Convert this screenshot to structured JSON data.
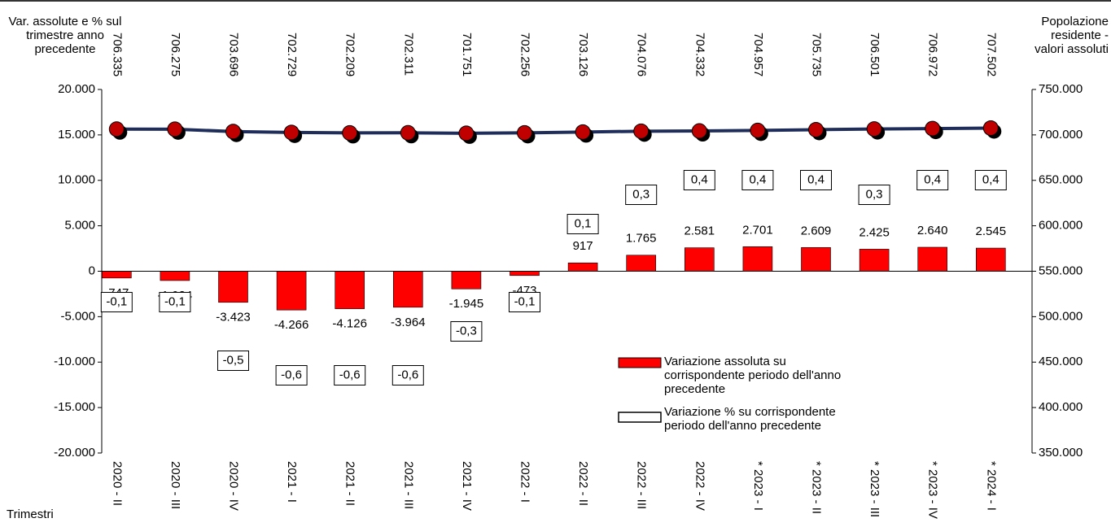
{
  "chart_data": {
    "type": "bar",
    "ylabel": "Var. assolute e % sul trimestre anno precedente",
    "y2label": "Popolazione residente - valori assoluti",
    "xlabel": "Trimestri",
    "categories": [
      "2020 - II",
      "2020 - III",
      "2020 - IV",
      "2021 - I",
      "2021 - II",
      "2021 - III",
      "2021 - IV",
      "2022 - I",
      "2022 - II",
      "2022 - III",
      "2022 - IV",
      "* 2023 - I",
      "* 2023 - II",
      "* 2023 - III",
      "* 2023 - IV",
      "* 2024 - I"
    ],
    "series": [
      {
        "name": "Variazione assoluta su corrispondente periodo dell'anno precedente",
        "type": "bar",
        "color": "#ff0000",
        "values": [
          -747,
          -1024,
          -3423,
          -4266,
          -4126,
          -3964,
          -1945,
          -473,
          917,
          1765,
          2581,
          2701,
          2609,
          2425,
          2640,
          2545
        ],
        "value_labels": [
          "-747",
          "-1.024",
          "-3.423",
          "-4.266",
          "-4.126",
          "-3.964",
          "-1.945",
          "-473",
          "917",
          "1.765",
          "2.581",
          "2.701",
          "2.609",
          "2.425",
          "2.640",
          "2.545"
        ]
      },
      {
        "name": "Variazione % su corrispondente periodo dell'anno precedente",
        "type": "label",
        "color": "#ffffff",
        "values": [
          -0.1,
          -0.1,
          -0.5,
          -0.6,
          -0.6,
          -0.6,
          -0.3,
          -0.1,
          0.1,
          0.3,
          0.4,
          0.4,
          0.4,
          0.3,
          0.4,
          0.4
        ],
        "value_labels": [
          "-0,1",
          "-0,1",
          "-0,5",
          "-0,6",
          "-0,6",
          "-0,6",
          "-0,3",
          "-0,1",
          "0,1",
          "0,3",
          "0,4",
          "0,4",
          "0,4",
          "0,3",
          "0,4",
          "0,4"
        ]
      },
      {
        "type": "line",
        "axis": "y2",
        "color": "#1f2d5a",
        "marker_color": "#c00000",
        "values": [
          706335,
          706275,
          703696,
          702729,
          702209,
          702311,
          701751,
          702256,
          703126,
          704076,
          704332,
          704957,
          705735,
          706501,
          706972,
          707502
        ],
        "value_labels": [
          "706.335",
          "706.275",
          "703.696",
          "702.729",
          "702.209",
          "702.311",
          "701.751",
          "702.256",
          "703.126",
          "704.076",
          "704.332",
          "704.957",
          "705.735",
          "706.501",
          "706.972",
          "707.502"
        ]
      }
    ],
    "ylim": [
      -20000,
      20000
    ],
    "yticks": [
      {
        "value": -20000,
        "label": "-20.000"
      },
      {
        "value": -15000,
        "label": "-15.000"
      },
      {
        "value": -10000,
        "label": "-10.000"
      },
      {
        "value": -5000,
        "label": "-5.000"
      },
      0,
      {
        "value": 5000,
        "label": "5.000"
      },
      {
        "value": 10000,
        "label": "10.000"
      },
      {
        "value": 15000,
        "label": "15.000"
      },
      {
        "value": 20000,
        "label": "20.000"
      }
    ],
    "y2lim": [
      350000,
      750000
    ],
    "y2ticks": [
      {
        "value": 350000,
        "label": "350.000"
      },
      {
        "value": 400000,
        "label": "400.000"
      },
      {
        "value": 450000,
        "label": "450.000"
      },
      {
        "value": 500000,
        "label": "500.000"
      },
      {
        "value": 550000,
        "label": "550.000"
      },
      {
        "value": 600000,
        "label": "600.000"
      },
      {
        "value": 650000,
        "label": "650.000"
      },
      {
        "value": 700000,
        "label": "700.000"
      },
      {
        "value": 750000,
        "label": "750.000"
      }
    ]
  }
}
